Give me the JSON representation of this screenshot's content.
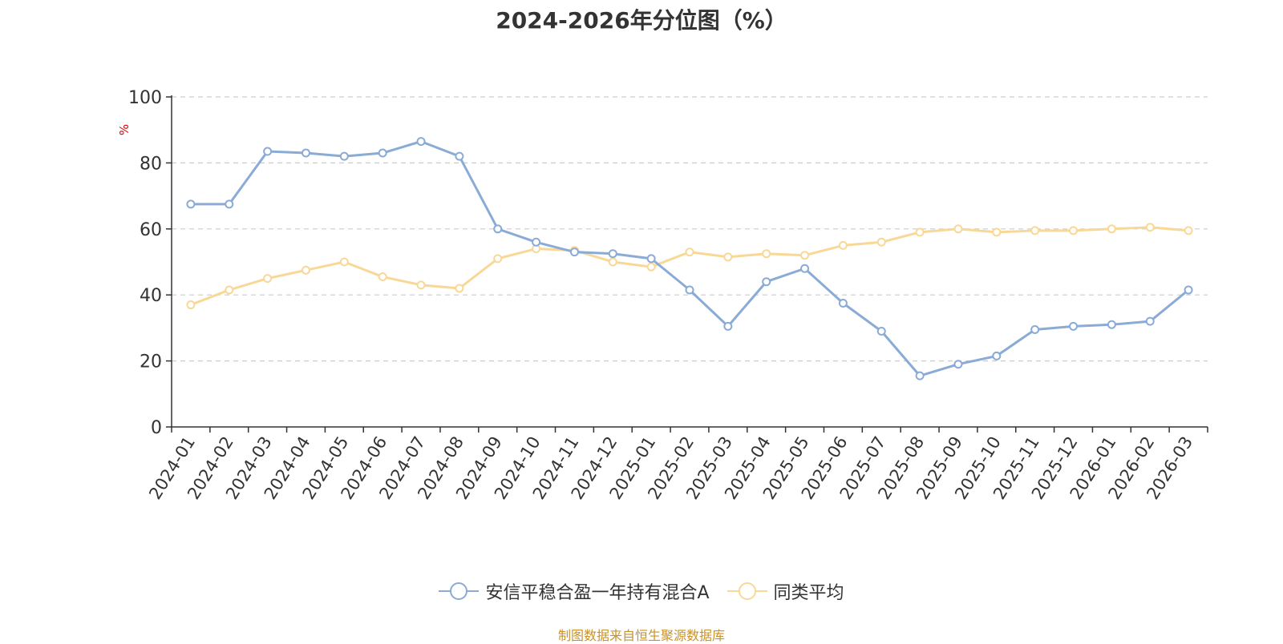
{
  "chart_data": {
    "type": "line",
    "title": "2024-2026年分位图（%）",
    "ylabel": "%",
    "xlabel": "",
    "ylim": [
      0,
      100
    ],
    "yticks": [
      0,
      20,
      40,
      60,
      80,
      100
    ],
    "grid": true,
    "legend_position": "bottom-center",
    "categories": [
      "2024-01",
      "2024-02",
      "2024-03",
      "2024-04",
      "2024-05",
      "2024-06",
      "2024-07",
      "2024-08",
      "2024-09",
      "2024-10",
      "2024-11",
      "2024-12",
      "2025-01",
      "2025-02",
      "2025-03",
      "2025-04",
      "2025-05",
      "2025-06",
      "2025-07",
      "2025-08",
      "2025-09",
      "2025-10",
      "2025-11",
      "2025-12",
      "2026-01",
      "2026-02",
      "2026-03"
    ],
    "series": [
      {
        "name": "安信平稳合盈一年持有混合A",
        "color": "#8aabd6",
        "values": [
          67.5,
          67.5,
          83.5,
          83,
          82,
          83,
          86.5,
          82,
          60,
          56,
          53,
          52.5,
          51,
          41.5,
          30.5,
          44,
          48,
          37.5,
          29,
          15.5,
          19,
          21.5,
          29.5,
          30.5,
          31,
          32,
          41.5
        ]
      },
      {
        "name": "同类平均",
        "color": "#f9d897",
        "values": [
          37,
          41.5,
          45,
          47.5,
          50,
          45.5,
          43,
          42,
          51,
          54,
          53.5,
          50,
          48.5,
          53,
          51.5,
          52.5,
          52,
          55,
          56,
          59,
          60,
          59,
          59.5,
          59.5,
          60,
          60.5,
          59.5
        ]
      }
    ],
    "source": "制图数据来自恒生聚源数据库"
  }
}
